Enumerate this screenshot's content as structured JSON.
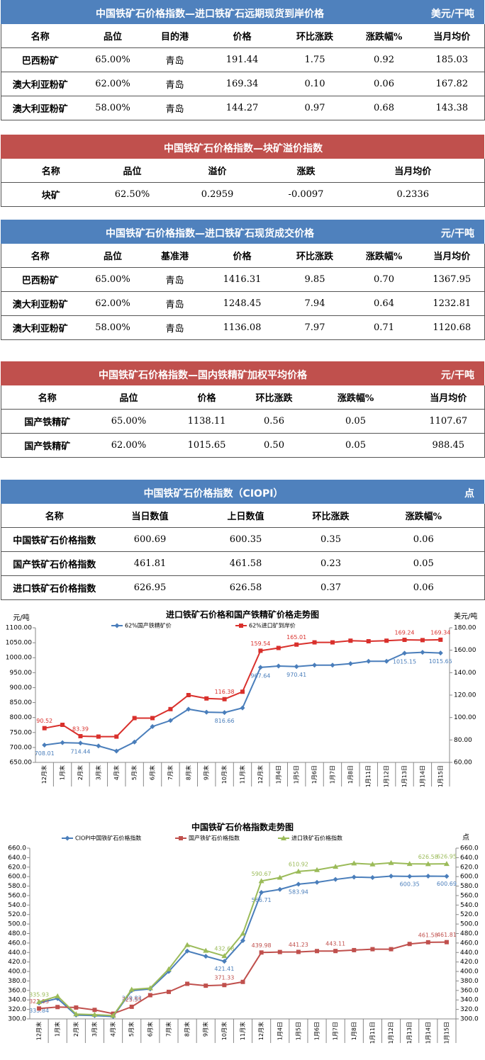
{
  "tables": [
    {
      "title": "中国铁矿石价格指数—进口铁矿石远期现货到岸价格",
      "unit": "美元/干吨",
      "color": "#4f81bd",
      "header": [
        "名称",
        "品位",
        "目的港",
        "价格",
        "环比涨跌",
        "涨跌幅%",
        "当月均价"
      ],
      "rows": [
        [
          "巴西粉矿",
          "65.00%",
          "青岛",
          "191.44",
          "1.75",
          "0.92",
          "185.03"
        ],
        [
          "澳大利亚粉矿",
          "62.00%",
          "青岛",
          "169.34",
          "0.10",
          "0.06",
          "167.82"
        ],
        [
          "澳大利亚粉矿",
          "58.00%",
          "青岛",
          "144.27",
          "0.97",
          "0.68",
          "143.38"
        ]
      ]
    },
    {
      "title": "中国铁矿石价格指数—块矿溢价指数",
      "color": "#c0504d",
      "header": [
        "名称",
        "品位",
        "溢价",
        "涨跌",
        "当月均价"
      ],
      "rows": [
        [
          "块矿",
          "62.50%",
          "0.2959",
          "-0.0097",
          "0.2336"
        ]
      ]
    },
    {
      "title": "中国铁矿石价格指数—进口铁矿石现货成交价格",
      "unit": "元/干吨",
      "color": "#4f81bd",
      "header": [
        "名称",
        "品位",
        "基准港",
        "价格",
        "环比涨跌",
        "涨跌幅%",
        "当月均价"
      ],
      "rows": [
        [
          "巴西粉矿",
          "65.00%",
          "青岛",
          "1416.31",
          "9.85",
          "0.70",
          "1367.95"
        ],
        [
          "澳大利亚粉矿",
          "62.00%",
          "青岛",
          "1248.45",
          "7.94",
          "0.64",
          "1232.81"
        ],
        [
          "澳大利亚粉矿",
          "58.00%",
          "青岛",
          "1136.08",
          "7.97",
          "0.71",
          "1120.68"
        ]
      ]
    },
    {
      "title": "中国铁矿石价格指数—国内铁精矿加权平均价格",
      "unit": "元/干吨",
      "color": "#c0504d",
      "header": [
        "名称",
        "品位",
        "价格",
        "环比涨跌",
        "涨跌幅%",
        "当月均价"
      ],
      "rows": [
        [
          "国产铁精矿",
          "65.00%",
          "1138.11",
          "0.56",
          "0.05",
          "1107.67"
        ],
        [
          "国产铁精矿",
          "62.00%",
          "1015.65",
          "0.50",
          "0.05",
          "988.45"
        ]
      ]
    },
    {
      "title": "中国铁矿石价格指数（CIOPI）",
      "unit": "点",
      "color": "#4f81bd",
      "header": [
        "名称",
        "当日数值",
        "上日数值",
        "环比涨跌",
        "涨跌幅%"
      ],
      "rows": [
        [
          "中国铁矿石价格指数",
          "600.69",
          "600.35",
          "0.35",
          "0.06"
        ],
        [
          "国产铁矿石价格指数",
          "461.81",
          "461.58",
          "0.23",
          "0.05"
        ],
        [
          "进口铁矿石价格指数",
          "626.95",
          "626.58",
          "0.37",
          "0.06"
        ]
      ]
    }
  ],
  "chart_data": [
    {
      "type": "line",
      "title": "进口铁矿石价格和国产铁精矿价格走势图",
      "y_unit": "元/吨",
      "y2_unit": "美元/吨",
      "year_labels": [
        "2019年",
        "2020年"
      ],
      "categories": [
        "12月末",
        "1月末",
        "2月末",
        "3月末",
        "4月末",
        "5月末",
        "6月末",
        "7月末",
        "8月末",
        "9月末",
        "10月末",
        "11月末",
        "12月末",
        "1月4日",
        "1月5日",
        "1月6日",
        "1月7日",
        "1月8日",
        "1月11日",
        "1月12日",
        "1月13日",
        "1月14日",
        "1月15日"
      ],
      "ylim": [
        650,
        1100
      ],
      "yticks": [
        {
          "value": 650,
          "label": "650.00"
        },
        {
          "value": 700,
          "label": "700.00"
        },
        {
          "value": 750,
          "label": "750.00"
        },
        {
          "value": 800,
          "label": "800.00"
        },
        {
          "value": 850,
          "label": "850.00"
        },
        {
          "value": 900,
          "label": "900.00"
        },
        {
          "value": 950,
          "label": "950.00"
        },
        {
          "value": 1000,
          "label": "1000.00"
        },
        {
          "value": 1050,
          "label": "1050.00"
        },
        {
          "value": 1100,
          "label": "1100.00"
        }
      ],
      "y2lim": [
        60,
        180
      ],
      "y2ticks": [
        {
          "value": 60,
          "label": "60.00"
        },
        {
          "value": 80,
          "label": "80.00"
        },
        {
          "value": 100,
          "label": "100.00"
        },
        {
          "value": 120,
          "label": "120.00"
        },
        {
          "value": 140,
          "label": "140.00"
        },
        {
          "value": 160,
          "label": "160.00"
        },
        {
          "value": 180,
          "label": "180.00"
        }
      ],
      "series": [
        {
          "name": "62%国产铁精矿价",
          "color": "#4a7ebb",
          "values": [
            708.01,
            716,
            714.44,
            705,
            688,
            718,
            770,
            790,
            828,
            818,
            816.66,
            832,
            967.64,
            972,
            970.41,
            975,
            975,
            980,
            988,
            988,
            1015.15,
            1018,
            1015.65
          ],
          "labeled": [
            0,
            2,
            10,
            12,
            14,
            20,
            22
          ]
        },
        {
          "name": "62%进口矿到岸价",
          "color": "#d9302c",
          "axis": "y2",
          "values": [
            90.52,
            93.5,
            83.39,
            83,
            83,
            99.5,
            99.5,
            107.5,
            120,
            117,
            116.38,
            123,
            159.54,
            162,
            165.01,
            167,
            167,
            168.5,
            168,
            168.5,
            169.24,
            169,
            169.34
          ],
          "labeled": [
            0,
            2,
            10,
            12,
            14,
            20,
            22
          ]
        }
      ]
    },
    {
      "type": "line",
      "title": "中国铁矿石价格指数走势图",
      "y2_unit": "点",
      "year_labels": [
        "2019年",
        "2020年"
      ],
      "categories": [
        "12月末",
        "1月末",
        "2月末",
        "3月末",
        "4月末",
        "5月末",
        "6月末",
        "7月末",
        "8月末",
        "9月末",
        "10月末",
        "11月末",
        "12月末",
        "1月4日",
        "1月5日",
        "1月6日",
        "1月7日",
        "1月8日",
        "1月11日",
        "1月12日",
        "1月13日",
        "1月14日",
        "1月15日"
      ],
      "ylim": [
        300,
        660
      ],
      "yticks": [
        {
          "value": 300,
          "label": "300.0"
        },
        {
          "value": 320,
          "label": "320.0"
        },
        {
          "value": 340,
          "label": "340.0"
        },
        {
          "value": 360,
          "label": "360.0"
        },
        {
          "value": 380,
          "label": "380.0"
        },
        {
          "value": 400,
          "label": "400.0"
        },
        {
          "value": 420,
          "label": "420.0"
        },
        {
          "value": 440,
          "label": "440.0"
        },
        {
          "value": 460,
          "label": "460.0"
        },
        {
          "value": 480,
          "label": "480.0"
        },
        {
          "value": 500,
          "label": "500.0"
        },
        {
          "value": 520,
          "label": "520.0"
        },
        {
          "value": 540,
          "label": "540.0"
        },
        {
          "value": 560,
          "label": "560.0"
        },
        {
          "value": 580,
          "label": "580.0"
        },
        {
          "value": 600,
          "label": "600.0"
        },
        {
          "value": 620,
          "label": "620.0"
        },
        {
          "value": 640,
          "label": "640.0"
        },
        {
          "value": 660,
          "label": "660.0"
        }
      ],
      "y2lim": [
        300,
        660
      ],
      "y2ticks": [
        {
          "value": 300,
          "label": "300.0"
        },
        {
          "value": 320,
          "label": "320.0"
        },
        {
          "value": 340,
          "label": "340.0"
        },
        {
          "value": 360,
          "label": "360.0"
        },
        {
          "value": 380,
          "label": "380.0"
        },
        {
          "value": 400,
          "label": "400.0"
        },
        {
          "value": 420,
          "label": "420.0"
        },
        {
          "value": 440,
          "label": "440.0"
        },
        {
          "value": 460,
          "label": "460.0"
        },
        {
          "value": 480,
          "label": "480.0"
        },
        {
          "value": 500,
          "label": "500.0"
        },
        {
          "value": 520,
          "label": "520.0"
        },
        {
          "value": 540,
          "label": "540.0"
        },
        {
          "value": 560,
          "label": "560.0"
        },
        {
          "value": 580,
          "label": "580.0"
        },
        {
          "value": 600,
          "label": "600.0"
        },
        {
          "value": 620,
          "label": "620.0"
        },
        {
          "value": 640,
          "label": "640.0"
        },
        {
          "value": 660,
          "label": "660.0"
        }
      ],
      "series": [
        {
          "name": "CIOPI中国铁矿石价格指数",
          "color": "#4a7ebb",
          "values": [
            333.84,
            343,
            308,
            307,
            305,
            359.83,
            363,
            400,
            443,
            432,
            421.41,
            465,
            566.71,
            573,
            583.94,
            588,
            594,
            599,
            598,
            601,
            600.35,
            601,
            600.69
          ],
          "labeled": [
            0,
            5,
            10,
            12,
            14,
            20,
            22
          ]
        },
        {
          "name": "国产铁矿石价格指数",
          "color": "#c0504d",
          "values": [
            321.93,
            325,
            324,
            319,
            311,
            325.55,
            350,
            357,
            374,
            370,
            371.33,
            378,
            439.98,
            441,
            441.23,
            443,
            443.11,
            445,
            447,
            447,
            458,
            461.58,
            461.81
          ],
          "labeled": [
            0,
            5,
            10,
            12,
            14,
            16,
            21,
            22
          ]
        },
        {
          "name": "进口铁矿石价格指数",
          "color": "#9bbb59",
          "values": [
            335.93,
            348,
            310,
            309,
            307,
            362,
            365,
            405,
            456,
            444,
            432.68,
            480,
            590.67,
            598,
            610.92,
            614,
            621,
            628,
            626,
            629,
            627,
            626.58,
            626.95
          ],
          "labeled": [
            0,
            10,
            12,
            14,
            21,
            22
          ]
        }
      ]
    }
  ]
}
